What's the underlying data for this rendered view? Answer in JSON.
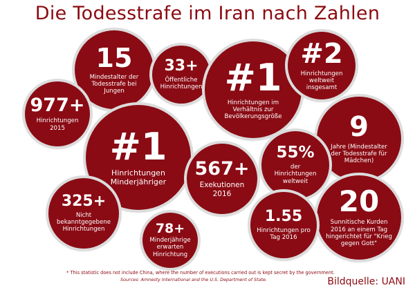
{
  "title": "Die Todesstrafe im Iran nach Zahlen",
  "bubbles": {
    "b15": {
      "big": "15",
      "text": "Mindestalter der Todesstrafe bei Jungen"
    },
    "b33": {
      "big": "33+",
      "text": "Öffentliche Hinrichtungen"
    },
    "b1a": {
      "big": "#1",
      "text": "Hinrichtungen im Verhältnis zur Bevölkerungsgröße"
    },
    "b2": {
      "big": "#2",
      "text": "Hinrichtungen weltweit insgesamt"
    },
    "b977": {
      "big": "977+",
      "text": "Hinrichtungen 2015"
    },
    "b9": {
      "big": "9",
      "text": "Jahre (Mindestalter der Todesstrafe für Mädchen)"
    },
    "b1b": {
      "big": "#1",
      "text": "Hinrichtungen Minderjähriger"
    },
    "b55": {
      "big": "55%",
      "text": "der Hinrichtungen weltweit"
    },
    "b567": {
      "big": "567+",
      "text": "Exekutionen 2016"
    },
    "b325": {
      "big": "325+",
      "text": "Nicht bekanntgegebene Hinrichtungen"
    },
    "b20": {
      "big": "20",
      "text": "Sunnitische Kurden 2016 an einem Tag hingerichtet für \"Krieg gegen Gott\""
    },
    "b155": {
      "big": "1.55",
      "text": "Hinrichtungen pro Tag 2016"
    },
    "b78": {
      "big": "78+",
      "text": "Minderjährige erwarten Hinrichtung"
    }
  },
  "footnote": "* This statistic does not include China, where the number of executions carried out is kept secret by the government.",
  "sources": "Sources: Amnesty International and the U.S. Department of State.",
  "credit": "Bildquelle: UANI",
  "colors": {
    "bubble": "#8a0b14",
    "accent": "#8b0a10",
    "ring": "#dcdcdc"
  }
}
